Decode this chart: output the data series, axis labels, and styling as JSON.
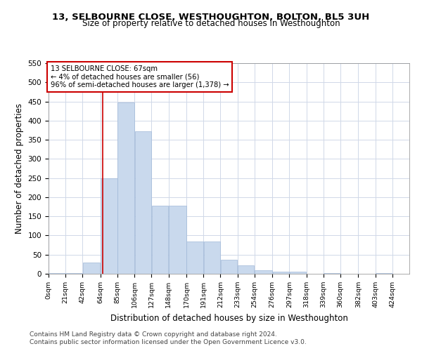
{
  "title1": "13, SELBOURNE CLOSE, WESTHOUGHTON, BOLTON, BL5 3UH",
  "title2": "Size of property relative to detached houses in Westhoughton",
  "xlabel": "Distribution of detached houses by size in Westhoughton",
  "ylabel": "Number of detached properties",
  "footer1": "Contains HM Land Registry data © Crown copyright and database right 2024.",
  "footer2": "Contains public sector information licensed under the Open Government Licence v3.0.",
  "annotation_line1": "13 SELBOURNE CLOSE: 67sqm",
  "annotation_line2": "← 4% of detached houses are smaller (56)",
  "annotation_line3": "96% of semi-detached houses are larger (1,378) →",
  "property_size": 67,
  "bar_color": "#c9d9ed",
  "bar_edge_color": "#a0b8d8",
  "vline_color": "#cc0000",
  "annotation_box_color": "#cc0000",
  "grid_color": "#d0d8e8",
  "categories": [
    "0sqm",
    "21sqm",
    "42sqm",
    "64sqm",
    "85sqm",
    "106sqm",
    "127sqm",
    "148sqm",
    "170sqm",
    "191sqm",
    "212sqm",
    "233sqm",
    "254sqm",
    "276sqm",
    "297sqm",
    "318sqm",
    "339sqm",
    "360sqm",
    "382sqm",
    "403sqm",
    "424sqm"
  ],
  "values": [
    2,
    2,
    30,
    250,
    447,
    373,
    178,
    178,
    85,
    85,
    37,
    22,
    10,
    5,
    5,
    0,
    2,
    0,
    0,
    2,
    0
  ],
  "bin_edges": [
    0,
    21,
    42,
    64,
    85,
    106,
    127,
    148,
    170,
    191,
    212,
    233,
    254,
    276,
    297,
    318,
    339,
    360,
    382,
    403,
    424,
    445
  ],
  "ylim": [
    0,
    550
  ],
  "yticks": [
    0,
    50,
    100,
    150,
    200,
    250,
    300,
    350,
    400,
    450,
    500,
    550
  ]
}
